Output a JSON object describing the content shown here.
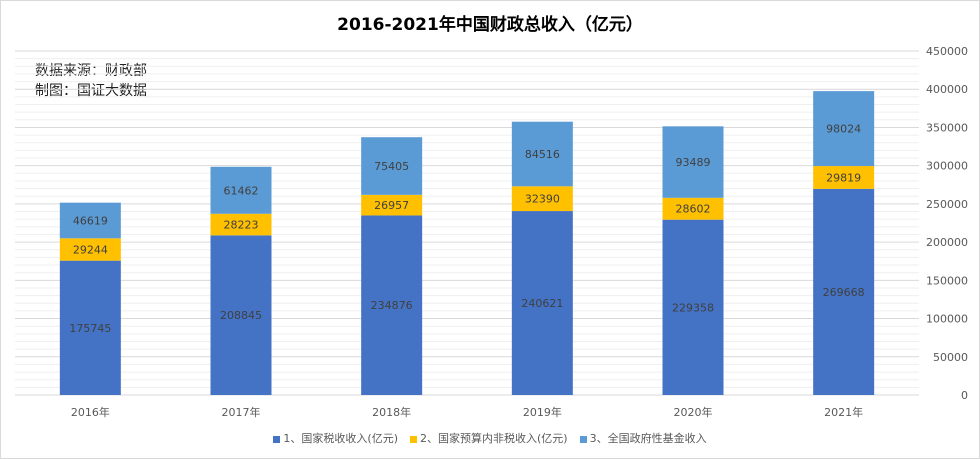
{
  "chart_data": {
    "type": "bar",
    "stacked": true,
    "title": "2016-2021年中国财政总收入（亿元）",
    "notes": [
      "数据来源：财政部",
      "制图：国证大数据"
    ],
    "categories": [
      "2016年",
      "2017年",
      "2018年",
      "2019年",
      "2020年",
      "2021年"
    ],
    "series": [
      {
        "name": "1、国家税收收入(亿元)",
        "color": "#4472c4",
        "values": [
          175745,
          208845,
          234876,
          240621,
          229358,
          269668
        ]
      },
      {
        "name": "2、国家预算内非税收入(亿元)",
        "color": "#ffc000",
        "values": [
          29244,
          28223,
          26957,
          32390,
          28602,
          29819
        ]
      },
      {
        "name": "3、全国政府性基金收入",
        "color": "#5b9bd5",
        "values": [
          46619,
          61462,
          75405,
          84516,
          93489,
          98024
        ]
      }
    ],
    "ylim": [
      0,
      450000
    ],
    "yticks": [
      0,
      50000,
      100000,
      150000,
      200000,
      250000,
      300000,
      350000,
      400000,
      450000
    ],
    "y_axis_side": "right",
    "grid": true,
    "legend": "bottom",
    "data_labels": true
  }
}
